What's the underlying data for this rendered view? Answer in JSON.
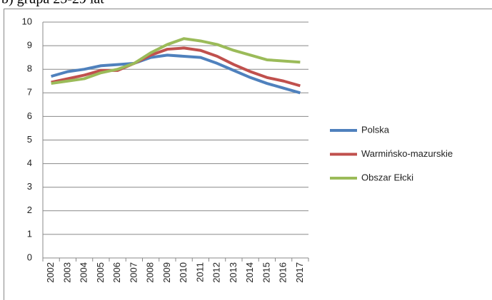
{
  "chart_data": {
    "type": "line",
    "title": "b) grupa 25-29 lat",
    "categories": [
      "2002",
      "2003",
      "2004",
      "2005",
      "2006",
      "2007",
      "2008",
      "2009",
      "2010",
      "2011",
      "2012",
      "2013",
      "2014",
      "2015",
      "2016",
      "2017"
    ],
    "series": [
      {
        "name": "Polska",
        "color": "#4f81bd",
        "values": [
          7.7,
          7.9,
          8.0,
          8.15,
          8.2,
          8.25,
          8.5,
          8.6,
          8.55,
          8.5,
          8.25,
          7.95,
          7.65,
          7.4,
          7.2,
          7.0
        ]
      },
      {
        "name": "Warmińsko-mazurskie",
        "color": "#c0504d",
        "values": [
          7.45,
          7.6,
          7.75,
          7.95,
          7.95,
          8.25,
          8.6,
          8.85,
          8.9,
          8.8,
          8.55,
          8.2,
          7.9,
          7.65,
          7.5,
          7.3
        ]
      },
      {
        "name": "Obszar Ełcki",
        "color": "#9bbb59",
        "values": [
          7.4,
          7.5,
          7.6,
          7.85,
          8.0,
          8.25,
          8.7,
          9.05,
          9.3,
          9.2,
          9.05,
          8.8,
          8.6,
          8.4,
          8.35,
          8.3
        ]
      }
    ],
    "ylim": [
      0,
      10
    ],
    "yticks": [
      0,
      1,
      2,
      3,
      4,
      5,
      6,
      7,
      8,
      9,
      10
    ],
    "grid": true,
    "legend": "right"
  }
}
